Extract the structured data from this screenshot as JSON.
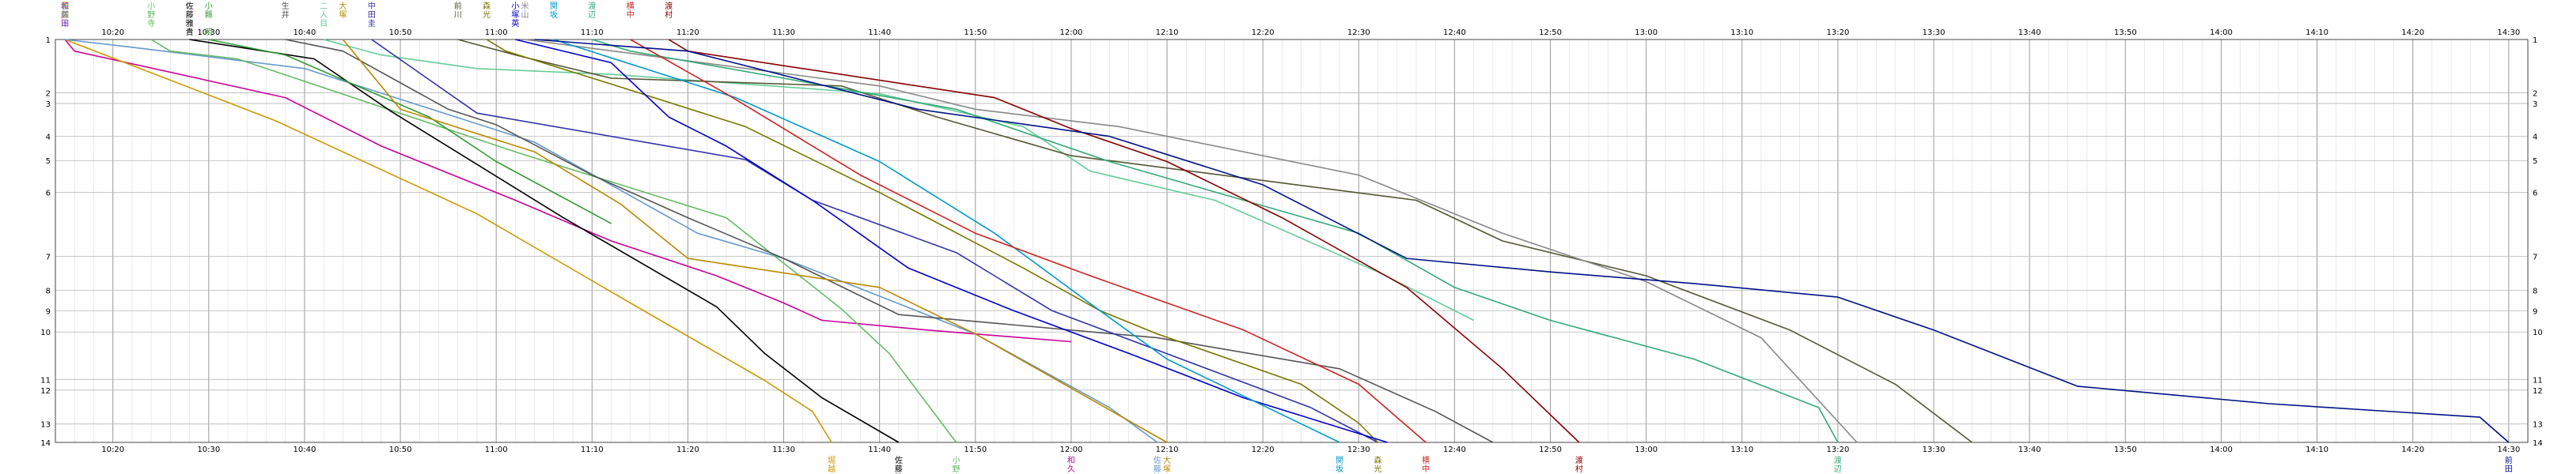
{
  "chart_data": {
    "type": "line",
    "x_start": "10:14",
    "x_end": "14:32",
    "x_tick_labels": [
      "10:20",
      "10:30",
      "10:40",
      "10:50",
      "11:00",
      "11:10",
      "11:20",
      "11:30",
      "11:40",
      "11:50",
      "12:00",
      "12:10",
      "12:20",
      "12:30",
      "12:40",
      "12:50",
      "13:00",
      "13:10",
      "13:20",
      "13:30",
      "13:40",
      "13:50",
      "14:00",
      "14:10",
      "14:20",
      "14:30"
    ],
    "y_stations": [
      {
        "label": "1",
        "pos": 0.0
      },
      {
        "label": "2",
        "pos": 2.75
      },
      {
        "label": "3",
        "pos": 3.3
      },
      {
        "label": "4",
        "pos": 5.0
      },
      {
        "label": "5",
        "pos": 6.25
      },
      {
        "label": "6",
        "pos": 7.9
      },
      {
        "label": "7",
        "pos": 11.2
      },
      {
        "label": "8",
        "pos": 12.95
      },
      {
        "label": "9",
        "pos": 14.0
      },
      {
        "label": "10",
        "pos": 15.1
      },
      {
        "label": "11",
        "pos": 17.55
      },
      {
        "label": "12",
        "pos": 18.1
      },
      {
        "label": "13",
        "pos": 19.85
      },
      {
        "label": "14",
        "pos": 20.8
      }
    ],
    "y_max": 20.8,
    "grid": true,
    "series": [
      {
        "name": "和久田",
        "color": "#cc0099",
        "top_label": "和久田",
        "bottom_label": "和久田",
        "points": [
          [
            "10:15",
            0
          ],
          [
            "10:16",
            0.6
          ],
          [
            "10:38",
            3.0
          ],
          [
            "10:48",
            5.5
          ],
          [
            "11:02",
            8.3
          ],
          [
            "11:12",
            10.4
          ],
          [
            "11:23",
            12.2
          ],
          [
            "11:30",
            13.6
          ],
          [
            "11:34",
            14.5
          ],
          [
            "11:45",
            15.0
          ],
          [
            "12:00",
            15.6
          ]
        ]
      },
      {
        "name": "堀越",
        "color": "#cc9900",
        "top_label": "堀越",
        "bottom_label": "堀越",
        "points": [
          [
            "10:15",
            0
          ],
          [
            "10:37",
            4.2
          ],
          [
            "10:58",
            9.0
          ],
          [
            "11:14",
            13.6
          ],
          [
            "11:28",
            17.6
          ],
          [
            "11:33",
            19.2
          ],
          [
            "11:35",
            20.8
          ]
        ]
      },
      {
        "name": "佐藤涼",
        "color": "#6699cc",
        "top_label": "佐藤涼",
        "bottom_label": "佐藤涼",
        "points": [
          [
            "10:15",
            0
          ],
          [
            "10:22",
            0.4
          ],
          [
            "10:40",
            1.5
          ],
          [
            "11:04",
            5.3
          ],
          [
            "11:21",
            10.0
          ],
          [
            "11:30",
            11.3
          ],
          [
            "11:50",
            15.2
          ],
          [
            "12:04",
            19.0
          ],
          [
            "12:09",
            20.8
          ]
        ]
      },
      {
        "name": "小野寺",
        "color": "#66bb66",
        "top_label": "小野寺",
        "bottom_label": "小野寺",
        "points": [
          [
            "10:24",
            0
          ],
          [
            "10:26",
            0.6
          ],
          [
            "10:33",
            1.0
          ],
          [
            "11:02",
            5.8
          ],
          [
            "11:24",
            9.2
          ],
          [
            "11:36",
            13.9
          ],
          [
            "11:41",
            16.2
          ],
          [
            "11:48",
            20.8
          ]
        ]
      },
      {
        "name": "佐藤雅貴",
        "color": "#000000",
        "top_label": "佐藤雅貴",
        "bottom_label": "佐藤雅貴",
        "points": [
          [
            "10:28",
            0
          ],
          [
            "10:41",
            1.0
          ],
          [
            "10:49",
            3.7
          ],
          [
            "11:07",
            9.2
          ],
          [
            "11:23",
            13.8
          ],
          [
            "11:28",
            16.2
          ],
          [
            "11:34",
            18.5
          ],
          [
            "11:42",
            20.8
          ]
        ]
      },
      {
        "name": "小縣 明",
        "color": "#339933",
        "top_label": "小縣 明",
        "bottom_label": "",
        "points": [
          [
            "10:30",
            0
          ],
          [
            "10:38",
            0.8
          ],
          [
            "10:53",
            4.0
          ],
          [
            "11:00",
            6.3
          ],
          [
            "11:12",
            9.5
          ]
        ]
      },
      {
        "name": "二人目",
        "color": "#66cc99",
        "top_label": "二人目",
        "bottom_label": "",
        "points": [
          [
            "10:42",
            0
          ],
          [
            "10:48",
            0.8
          ],
          [
            "10:58",
            1.5
          ],
          [
            "11:12",
            1.8
          ],
          [
            "11:40",
            2.8
          ],
          [
            "11:55",
            4.5
          ],
          [
            "12:02",
            6.8
          ],
          [
            "12:15",
            8.3
          ],
          [
            "12:32",
            12.0
          ],
          [
            "12:42",
            14.5
          ]
        ]
      },
      {
        "name": "生井",
        "color": "#555555",
        "top_label": "生井",
        "bottom_label": "",
        "points": [
          [
            "10:38",
            0
          ],
          [
            "10:44",
            0.6
          ],
          [
            "10:55",
            3.6
          ],
          [
            "11:00",
            4.4
          ],
          [
            "11:10",
            7.0
          ],
          [
            "11:20",
            9.2
          ],
          [
            "11:30",
            11.3
          ],
          [
            "11:42",
            14.2
          ],
          [
            "12:09",
            15.4
          ],
          [
            "12:28",
            17.0
          ],
          [
            "12:38",
            19.2
          ],
          [
            "12:44",
            20.8
          ]
        ]
      },
      {
        "name": "大塚",
        "color": "#bb8800",
        "top_label": "大塚",
        "bottom_label": "大塚",
        "points": [
          [
            "10:44",
            0
          ],
          [
            "10:50",
            3.6
          ],
          [
            "11:04",
            5.8
          ],
          [
            "11:13",
            8.5
          ],
          [
            "11:20",
            11.3
          ],
          [
            "11:40",
            12.8
          ],
          [
            "11:50",
            15.2
          ],
          [
            "12:10",
            20.8
          ]
        ]
      },
      {
        "name": "中田圭",
        "color": "#3333aa",
        "top_label": "中田圭",
        "bottom_label": "",
        "points": [
          [
            "10:47",
            0
          ],
          [
            "10:58",
            3.8
          ],
          [
            "11:26",
            6.2
          ],
          [
            "11:33",
            8.3
          ],
          [
            "11:48",
            11.0
          ],
          [
            "11:58",
            14.0
          ],
          [
            "12:25",
            19.0
          ],
          [
            "12:32",
            20.8
          ]
        ]
      },
      {
        "name": "前川",
        "color": "#555533",
        "top_label": "前川",
        "bottom_label": "",
        "points": [
          [
            "10:56",
            0
          ],
          [
            "11:02",
            0.8
          ],
          [
            "11:12",
            2.0
          ],
          [
            "11:36",
            2.4
          ],
          [
            "11:46",
            4.0
          ],
          [
            "12:00",
            6.0
          ],
          [
            "12:36",
            8.3
          ],
          [
            "12:45",
            10.4
          ],
          [
            "13:00",
            12.2
          ],
          [
            "13:15",
            15.0
          ],
          [
            "13:26",
            17.8
          ],
          [
            "13:34",
            20.8
          ]
        ]
      },
      {
        "name": "森光",
        "color": "#777700",
        "top_label": "森光",
        "bottom_label": "森光",
        "points": [
          [
            "10:59",
            0
          ],
          [
            "11:01",
            0.6
          ],
          [
            "11:12",
            2.3
          ],
          [
            "11:26",
            4.5
          ],
          [
            "11:40",
            7.9
          ],
          [
            "11:55",
            11.8
          ],
          [
            "12:03",
            14.0
          ],
          [
            "12:09",
            15.2
          ],
          [
            "12:24",
            17.8
          ],
          [
            "12:30",
            19.8
          ],
          [
            "12:32",
            20.8
          ]
        ]
      },
      {
        "name": "小塚英",
        "color": "#0000cc",
        "top_label": "小塚英",
        "bottom_label": "",
        "points": [
          [
            "11:02",
            0
          ],
          [
            "11:12",
            1.2
          ],
          [
            "11:18",
            4.0
          ],
          [
            "11:24",
            5.5
          ],
          [
            "11:33",
            8.3
          ],
          [
            "11:43",
            11.8
          ],
          [
            "11:54",
            14.0
          ],
          [
            "12:06",
            16.2
          ],
          [
            "12:18",
            18.5
          ],
          [
            "12:33",
            20.8
          ]
        ]
      },
      {
        "name": "米山",
        "color": "#888888",
        "top_label": "米山",
        "bottom_label": "",
        "points": [
          [
            "11:03",
            0
          ],
          [
            "11:40",
            2.4
          ],
          [
            "11:50",
            3.6
          ],
          [
            "12:05",
            4.5
          ],
          [
            "12:30",
            7.0
          ],
          [
            "12:45",
            10.0
          ],
          [
            "13:00",
            12.5
          ],
          [
            "13:12",
            15.4
          ],
          [
            "13:22",
            20.8
          ]
        ]
      },
      {
        "name": "関坂",
        "color": "#0099cc",
        "top_label": "関坂",
        "bottom_label": "関坂",
        "points": [
          [
            "11:06",
            0
          ],
          [
            "11:25",
            3.0
          ],
          [
            "11:40",
            6.3
          ],
          [
            "11:52",
            10.0
          ],
          [
            "12:03",
            14.0
          ],
          [
            "12:10",
            16.5
          ],
          [
            "12:28",
            20.8
          ]
        ]
      },
      {
        "name": "渡辺",
        "color": "#33aa77",
        "top_label": "渡辺",
        "bottom_label": "渡辺",
        "points": [
          [
            "11:10",
            0
          ],
          [
            "11:14",
            0.6
          ],
          [
            "11:30",
            2.0
          ],
          [
            "11:48",
            3.6
          ],
          [
            "12:04",
            6.3
          ],
          [
            "12:18",
            8.3
          ],
          [
            "12:30",
            10.0
          ],
          [
            "12:40",
            12.8
          ],
          [
            "12:50",
            14.5
          ],
          [
            "13:05",
            16.5
          ],
          [
            "13:18",
            19.0
          ],
          [
            "13:20",
            20.8
          ]
        ]
      },
      {
        "name": "横中",
        "color": "#cc2222",
        "top_label": "横中",
        "bottom_label": "横中",
        "points": [
          [
            "11:14",
            0
          ],
          [
            "11:24",
            2.8
          ],
          [
            "11:38",
            7.0
          ],
          [
            "11:50",
            10.0
          ],
          [
            "12:02",
            12.2
          ],
          [
            "12:18",
            15.0
          ],
          [
            "12:30",
            17.8
          ],
          [
            "12:37",
            20.8
          ]
        ]
      },
      {
        "name": "渡村",
        "color": "#880000",
        "top_label": "渡村",
        "bottom_label": "渡村",
        "points": [
          [
            "11:18",
            0
          ],
          [
            "11:20",
            0.6
          ],
          [
            "11:52",
            3.0
          ],
          [
            "12:00",
            4.6
          ],
          [
            "12:10",
            6.3
          ],
          [
            "12:22",
            9.2
          ],
          [
            "12:35",
            12.8
          ],
          [
            "12:45",
            17.0
          ],
          [
            "12:53",
            20.8
          ]
        ]
      },
      {
        "name": "前田",
        "color": "#001188",
        "top_label": "",
        "bottom_label": "前田",
        "points": [
          [
            "11:04",
            0
          ],
          [
            "11:20",
            0.6
          ],
          [
            "11:44",
            3.6
          ],
          [
            "12:04",
            5.0
          ],
          [
            "12:20",
            7.5
          ],
          [
            "12:35",
            11.3
          ],
          [
            "12:50",
            12.0
          ],
          [
            "13:05",
            12.6
          ],
          [
            "13:20",
            13.3
          ],
          [
            "13:30",
            15.0
          ],
          [
            "13:45",
            17.9
          ],
          [
            "14:05",
            18.8
          ],
          [
            "14:27",
            19.5
          ],
          [
            "14:30",
            20.8
          ]
        ]
      }
    ]
  }
}
